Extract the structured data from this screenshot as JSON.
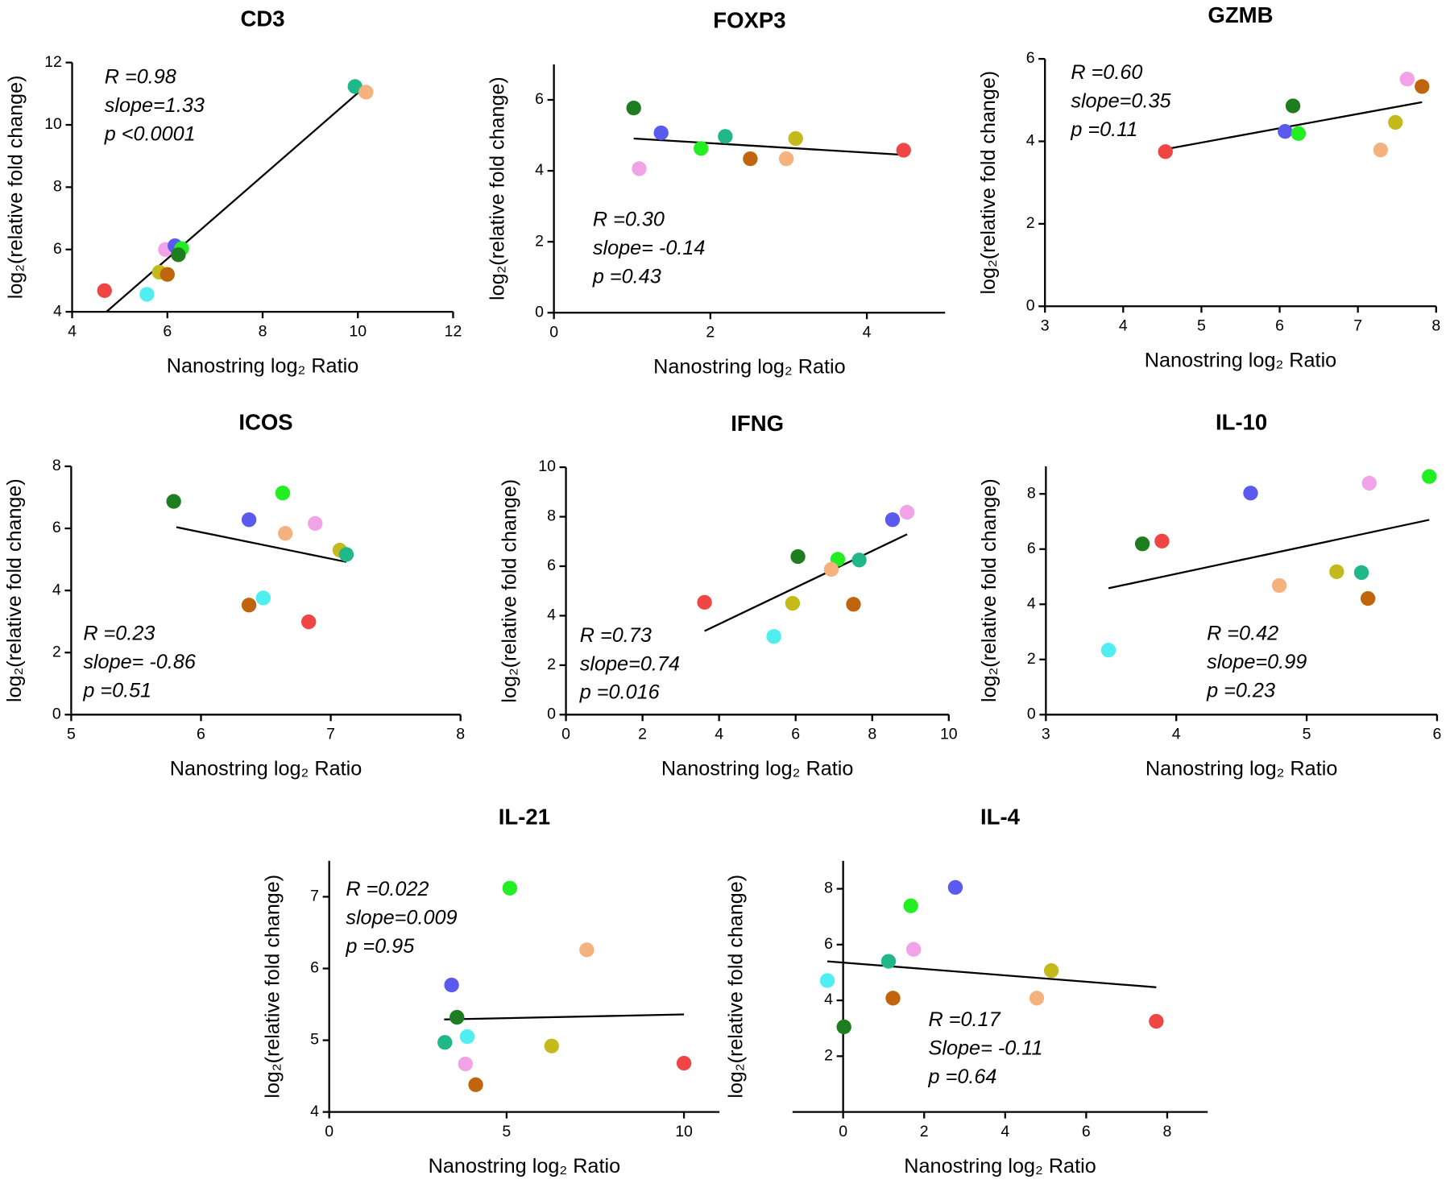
{
  "chart_data": [
    {
      "type": "scatter",
      "title": "CD3",
      "xlabel": "Nanostring log₂ Ratio",
      "ylabel": "log₂(relative fold change)",
      "x": [
        4.68,
        5.57,
        5.83,
        6.0,
        5.96,
        6.16,
        6.3,
        6.23,
        9.94,
        10.17
      ],
      "y": [
        4.68,
        4.56,
        5.27,
        5.2,
        6.0,
        6.12,
        6.03,
        5.83,
        11.23,
        11.05
      ],
      "colors": [
        "#f04545",
        "#4feef0",
        "#c4ba1c",
        "#c0650e",
        "#f2a2e6",
        "#5a5aee",
        "#22ee22",
        "#1e7d1e",
        "#20b888",
        "#f5b27e"
      ],
      "fit": {
        "x": [
          4.72,
          10.02
        ],
        "y": [
          4.0,
          11.05
        ]
      },
      "annotations": [
        "R =0.98",
        "slope=1.33",
        "p <0.0001"
      ],
      "xlim": [
        4,
        12
      ],
      "ylim": [
        4,
        12
      ],
      "xticks": [
        4,
        6,
        8,
        10,
        12
      ],
      "yticks": [
        4,
        6,
        8,
        10,
        12
      ]
    },
    {
      "type": "scatter",
      "title": "FOXP3",
      "xlabel": "Nanostring log₂ Ratio",
      "ylabel": "log₂(relative fold change)",
      "x": [
        1.02,
        1.37,
        1.09,
        1.88,
        2.19,
        2.51,
        2.97,
        3.09,
        4.47
      ],
      "y": [
        5.77,
        5.07,
        4.06,
        4.63,
        4.97,
        4.34,
        4.34,
        4.91,
        4.58
      ],
      "colors": [
        "#1e7d1e",
        "#5a5aee",
        "#f2a2e6",
        "#22ee22",
        "#20b888",
        "#c0650e",
        "#f5b27e",
        "#c4ba1c",
        "#f04545"
      ],
      "fit": {
        "x": [
          1.02,
          4.47
        ],
        "y": [
          4.91,
          4.45
        ]
      },
      "annotations": [
        "R =0.30",
        "slope= -0.14",
        "p =0.43"
      ],
      "xlim": [
        0,
        5
      ],
      "ylim": [
        0,
        7
      ],
      "xticks": [
        0,
        2,
        4
      ],
      "yticks": [
        0,
        2,
        4,
        6
      ]
    },
    {
      "type": "scatter",
      "title": "GZMB",
      "xlabel": "Nanostring log₂ Ratio",
      "ylabel": "log₂(relative fold change)",
      "x": [
        4.54,
        6.07,
        6.17,
        6.24,
        7.29,
        7.48,
        7.63,
        7.82
      ],
      "y": [
        3.75,
        4.24,
        4.86,
        4.19,
        3.79,
        4.46,
        5.51,
        5.33
      ],
      "colors": [
        "#f04545",
        "#5a5aee",
        "#1e7d1e",
        "#22ee22",
        "#f5b27e",
        "#c4ba1c",
        "#f2a2e6",
        "#c0650e"
      ],
      "fit": {
        "x": [
          4.54,
          7.82
        ],
        "y": [
          3.81,
          4.95
        ]
      },
      "annotations": [
        "R =0.60",
        "slope=0.35",
        "p =0.11"
      ],
      "xlim": [
        3,
        8
      ],
      "ylim": [
        0,
        6
      ],
      "xticks": [
        3,
        4,
        5,
        6,
        7,
        8
      ],
      "yticks": [
        0,
        2,
        4,
        6
      ]
    },
    {
      "type": "scatter",
      "title": "ICOS",
      "xlabel": "Nanostring log₂ Ratio",
      "ylabel": "log₂(relative fold change)",
      "x": [
        5.79,
        6.37,
        6.63,
        6.65,
        6.88,
        7.07,
        7.12,
        6.48,
        6.37,
        6.83
      ],
      "y": [
        6.87,
        6.28,
        7.14,
        5.84,
        6.16,
        5.3,
        5.16,
        3.76,
        3.53,
        2.99
      ],
      "colors": [
        "#1e7d1e",
        "#5a5aee",
        "#22ee22",
        "#f5b27e",
        "#f2a2e6",
        "#c4ba1c",
        "#20b888",
        "#4feef0",
        "#c0650e",
        "#f04545"
      ],
      "fit": {
        "x": [
          5.81,
          7.12
        ],
        "y": [
          6.04,
          4.92
        ]
      },
      "annotations": [
        "R =0.23",
        "slope= -0.86",
        "p =0.51"
      ],
      "xlim": [
        5,
        8
      ],
      "ylim": [
        0,
        8
      ],
      "xticks": [
        5,
        6,
        7,
        8
      ],
      "yticks": [
        0,
        2,
        4,
        6,
        8
      ]
    },
    {
      "type": "scatter",
      "title": "IFNG",
      "xlabel": "Nanostring log₂ Ratio",
      "ylabel": "log₂(relative fold change)",
      "x": [
        3.62,
        5.43,
        5.92,
        6.06,
        7.1,
        6.93,
        7.66,
        7.51,
        8.53,
        8.91
      ],
      "y": [
        4.54,
        3.16,
        4.5,
        6.39,
        6.28,
        5.87,
        6.25,
        4.46,
        7.88,
        8.18
      ],
      "colors": [
        "#f04545",
        "#4feef0",
        "#c4ba1c",
        "#1e7d1e",
        "#22ee22",
        "#f5b27e",
        "#20b888",
        "#c0650e",
        "#5a5aee",
        "#f2a2e6"
      ],
      "fit": {
        "x": [
          3.62,
          8.91
        ],
        "y": [
          3.38,
          7.29
        ]
      },
      "annotations": [
        "R =0.73",
        "slope=0.74",
        "p =0.016"
      ],
      "xlim": [
        0,
        10
      ],
      "ylim": [
        0,
        10
      ],
      "xticks": [
        0,
        2,
        4,
        6,
        8,
        10
      ],
      "yticks": [
        0,
        2,
        4,
        6,
        8,
        10
      ]
    },
    {
      "type": "scatter",
      "title": "IL-10",
      "xlabel": "Nanostring log₂ Ratio",
      "ylabel": "log₂(relative fold change)",
      "x": [
        3.48,
        3.74,
        3.89,
        4.57,
        4.79,
        5.23,
        5.42,
        5.47,
        5.48,
        5.94
      ],
      "y": [
        2.34,
        6.19,
        6.29,
        8.03,
        4.68,
        5.18,
        5.15,
        4.21,
        8.39,
        8.63
      ],
      "colors": [
        "#4feef0",
        "#1e7d1e",
        "#f04545",
        "#5a5aee",
        "#f5b27e",
        "#c4ba1c",
        "#20b888",
        "#c0650e",
        "#f2a2e6",
        "#22ee22"
      ],
      "fit": {
        "x": [
          3.48,
          5.94
        ],
        "y": [
          4.58,
          7.06
        ]
      },
      "annotations": [
        "R =0.42",
        "slope=0.99",
        "p =0.23"
      ],
      "xlim": [
        3,
        6
      ],
      "ylim": [
        0,
        9
      ],
      "xticks": [
        3,
        4,
        5,
        6
      ],
      "yticks": [
        0,
        2,
        4,
        6,
        8
      ]
    },
    {
      "type": "scatter",
      "title": "IL-21",
      "xlabel": "Nanostring log₂ Ratio",
      "ylabel": "log₂(relative fold change)",
      "x": [
        5.09,
        7.26,
        3.45,
        3.6,
        3.26,
        3.89,
        6.27,
        3.84,
        10.0,
        4.13
      ],
      "y": [
        7.12,
        6.26,
        5.77,
        5.32,
        4.97,
        5.05,
        4.92,
        4.67,
        4.68,
        4.38
      ],
      "colors": [
        "#22ee22",
        "#f5b27e",
        "#5a5aee",
        "#1e7d1e",
        "#20b888",
        "#4feef0",
        "#c4ba1c",
        "#f2a2e6",
        "#f04545",
        "#c0650e"
      ],
      "fit": {
        "x": [
          3.24,
          10.0
        ],
        "y": [
          5.29,
          5.36
        ]
      },
      "annotations": [
        "R =0.022",
        "slope=0.009",
        "p =0.95"
      ],
      "xlim": [
        0,
        11
      ],
      "ylim": [
        4,
        7.5
      ],
      "xticks": [
        0,
        5,
        10
      ],
      "yticks": [
        4,
        5,
        6,
        7
      ]
    },
    {
      "type": "scatter",
      "title": "IL-4",
      "xlabel": "Nanostring log₂ Ratio",
      "ylabel": "log₂(relative fold change)",
      "x": [
        2.77,
        1.67,
        1.74,
        1.12,
        -0.39,
        1.23,
        4.78,
        5.14,
        7.73,
        0.02
      ],
      "y": [
        8.05,
        7.39,
        5.83,
        5.4,
        4.71,
        4.08,
        4.08,
        5.07,
        3.25,
        3.05
      ],
      "colors": [
        "#5a5aee",
        "#22ee22",
        "#f2a2e6",
        "#20b888",
        "#4feef0",
        "#c0650e",
        "#f5b27e",
        "#c4ba1c",
        "#f04545",
        "#1e7d1e"
      ],
      "fit": {
        "x": [
          -0.39,
          7.73
        ],
        "y": [
          5.4,
          4.47
        ]
      },
      "annotations": [
        "R =0.17",
        "Slope= -0.11",
        "p =0.64"
      ],
      "y_axis_at_x": 0,
      "xlim": [
        -1.25,
        9
      ],
      "ylim": [
        0,
        9
      ],
      "xticks": [
        0,
        2,
        4,
        6,
        8
      ],
      "yticks": [
        2,
        4,
        6,
        8
      ]
    }
  ]
}
